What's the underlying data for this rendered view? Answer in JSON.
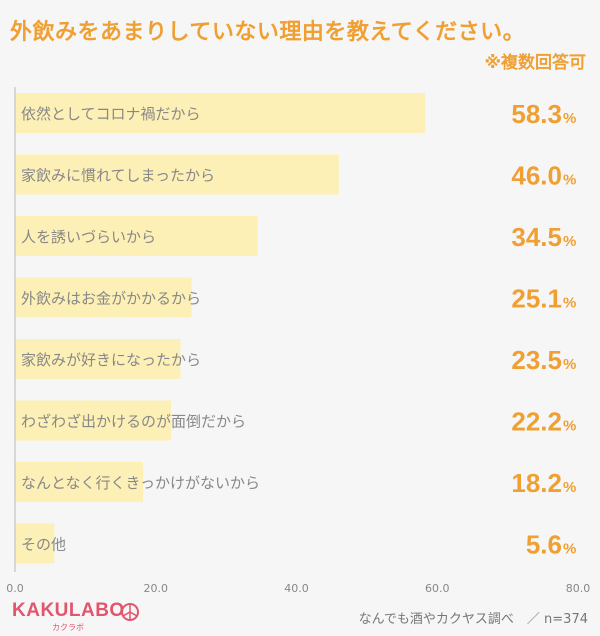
{
  "title": "外飲みをあまりしていない理由を教えてください。",
  "note": "※複数回答可",
  "brand": {
    "logo": "KAKULABO",
    "sub": "カクラボ"
  },
  "source": "なんでも酒やカクヤス調べ　／ n=374",
  "colors": {
    "bar": "#fdf0b6",
    "accent": "#f0a033",
    "label": "#888888",
    "axis": "#bbbbbb"
  },
  "chart_data": {
    "type": "bar",
    "orientation": "horizontal",
    "categories": [
      "依然としてコロナ禍だから",
      "家飲みに慣れてしまったから",
      "人を誘いづらいから",
      "外飲みはお金がかかるから",
      "家飲みが好きになったから",
      "わざわざ出かけるのが面倒だから",
      "なんとなく行くきっかけがないから",
      "その他"
    ],
    "values": [
      58.3,
      46.0,
      34.5,
      25.1,
      23.5,
      22.2,
      18.2,
      5.6
    ],
    "value_labels": [
      "58.3",
      "46.0",
      "34.5",
      "25.1",
      "23.5",
      "22.2",
      "18.2",
      "5.6"
    ],
    "unit": "%",
    "xlim": [
      0,
      80
    ],
    "xticks": [
      "0.0",
      "20.0",
      "40.0",
      "60.0",
      "80.0"
    ]
  }
}
